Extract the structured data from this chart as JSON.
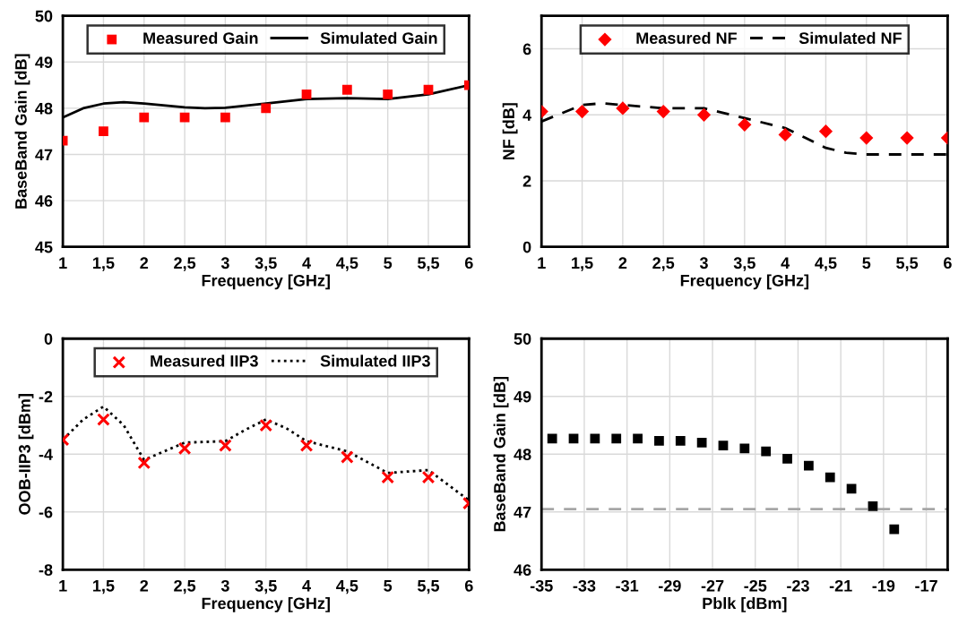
{
  "chart_data": [
    {
      "type": "scatter",
      "xlabel": "Frequency [GHz]",
      "ylabel": "BaseBand Gain [dB]",
      "xlim": [
        1,
        6
      ],
      "ylim": [
        45,
        50
      ],
      "xticks": [
        1,
        {
          "value": 1.5,
          "label": "1,5"
        },
        2,
        {
          "value": 2.5,
          "label": "2,5"
        },
        3,
        {
          "value": 3.5,
          "label": "3,5"
        },
        4,
        {
          "value": 4.5,
          "label": "4,5"
        },
        5,
        {
          "value": 5.5,
          "label": "5,5"
        },
        6
      ],
      "yticks": [
        45,
        46,
        47,
        48,
        49,
        50
      ],
      "grid": true,
      "legend": "top",
      "series": [
        {
          "name": "Measured Gain",
          "marker": "square",
          "color": "#ff0000",
          "x": [
            1,
            1.5,
            2,
            2.5,
            3,
            3.5,
            4,
            4.5,
            5,
            5.5,
            6
          ],
          "values": [
            47.3,
            47.5,
            47.8,
            47.8,
            47.8,
            48.0,
            48.3,
            48.4,
            48.3,
            48.4,
            48.5
          ]
        },
        {
          "name": "Simulated Gain",
          "type": "line",
          "line_style": "solid",
          "color": "#000000",
          "x": [
            1,
            1.25,
            1.5,
            1.75,
            2,
            2.5,
            2.75,
            3,
            3.5,
            4,
            4.5,
            5,
            5.5,
            6
          ],
          "values": [
            47.8,
            48.0,
            48.1,
            48.13,
            48.1,
            48.02,
            48.0,
            48.01,
            48.1,
            48.2,
            48.22,
            48.2,
            48.3,
            48.5
          ]
        }
      ]
    },
    {
      "type": "scatter",
      "xlabel": "Frequency [GHz]",
      "ylabel": "NF [dB]",
      "xlim": [
        1,
        6
      ],
      "ylim": [
        0,
        7
      ],
      "xticks": [
        1,
        {
          "value": 1.5,
          "label": "1,5"
        },
        2,
        {
          "value": 2.5,
          "label": "2,5"
        },
        3,
        {
          "value": 3.5,
          "label": "3,5"
        },
        4,
        {
          "value": 4.5,
          "label": "4,5"
        },
        5,
        {
          "value": 5.5,
          "label": "5,5"
        },
        6
      ],
      "yticks": [
        0,
        2,
        4,
        6
      ],
      "grid": true,
      "legend": "top",
      "series": [
        {
          "name": "Measured NF",
          "marker": "diamond",
          "color": "#ff0000",
          "x": [
            1,
            1.5,
            2,
            2.5,
            3,
            3.5,
            4,
            4.5,
            5,
            5.5,
            6
          ],
          "values": [
            4.1,
            4.1,
            4.2,
            4.1,
            4.0,
            3.7,
            3.4,
            3.5,
            3.3,
            3.3,
            3.3
          ]
        },
        {
          "name": "Simulated NF",
          "type": "line",
          "line_style": "dashed",
          "color": "#000000",
          "x": [
            1,
            1.25,
            1.5,
            1.75,
            2,
            2.5,
            3,
            3.25,
            3.5,
            4,
            4.25,
            4.5,
            4.75,
            5,
            5.5,
            6
          ],
          "values": [
            3.8,
            4.05,
            4.3,
            4.35,
            4.3,
            4.2,
            4.2,
            4.05,
            3.9,
            3.6,
            3.3,
            3.0,
            2.85,
            2.8,
            2.8,
            2.8
          ]
        }
      ]
    },
    {
      "type": "scatter",
      "xlabel": "Frequency [GHz]",
      "ylabel": "OOB-IIP3 [dBm]",
      "xlim": [
        1,
        6
      ],
      "ylim": [
        -8,
        0
      ],
      "xticks": [
        1,
        {
          "value": 1.5,
          "label": "1,5"
        },
        2,
        {
          "value": 2.5,
          "label": "2,5"
        },
        3,
        {
          "value": 3.5,
          "label": "3,5"
        },
        4,
        {
          "value": 4.5,
          "label": "4,5"
        },
        5,
        {
          "value": 5.5,
          "label": "5,5"
        },
        6
      ],
      "yticks": [
        -8,
        -6,
        -4,
        -2,
        0
      ],
      "grid": true,
      "legend": "top",
      "series": [
        {
          "name": "Measured IIP3",
          "marker": "cross",
          "color": "#ff0000",
          "x": [
            1,
            1.5,
            2,
            2.5,
            3,
            3.5,
            4,
            4.5,
            5,
            5.5,
            6
          ],
          "values": [
            -3.5,
            -2.8,
            -4.3,
            -3.8,
            -3.7,
            -3.0,
            -3.7,
            -4.1,
            -4.8,
            -4.8,
            -5.7
          ]
        },
        {
          "name": "Simulated IIP3",
          "type": "line",
          "line_style": "dotted",
          "color": "#000000",
          "x": [
            1,
            1.25,
            1.5,
            1.75,
            2,
            2.25,
            2.5,
            3,
            3.25,
            3.5,
            3.75,
            4,
            4.5,
            5,
            5.5,
            6
          ],
          "values": [
            -3.5,
            -2.8,
            -2.35,
            -3.0,
            -4.2,
            -3.9,
            -3.6,
            -3.55,
            -3.15,
            -2.8,
            -3.1,
            -3.55,
            -3.9,
            -4.65,
            -4.55,
            -5.6
          ]
        }
      ]
    },
    {
      "type": "scatter",
      "xlabel": "Pblk [dBm]",
      "ylabel": "BaseBand Gain [dB]",
      "xlim": [
        -35,
        -16
      ],
      "ylim": [
        46,
        50
      ],
      "xticks": [
        -35,
        -33,
        -31,
        -29,
        -27,
        -25,
        -23,
        -21,
        -19,
        -17
      ],
      "yticks": [
        46,
        47,
        48,
        49,
        50
      ],
      "grid": true,
      "series": [
        {
          "marker": "square",
          "color": "#000000",
          "x": [
            -34.5,
            -33.5,
            -32.5,
            -31.5,
            -30.5,
            -29.5,
            -28.5,
            -27.5,
            -26.5,
            -25.5,
            -24.5,
            -23.5,
            -22.5,
            -21.5,
            -20.5,
            -19.5,
            -18.5
          ],
          "values": [
            48.27,
            48.27,
            48.27,
            48.27,
            48.27,
            48.23,
            48.23,
            48.2,
            48.15,
            48.1,
            48.05,
            47.92,
            47.8,
            47.6,
            47.4,
            47.1,
            46.7
          ]
        }
      ],
      "ref_lines": [
        {
          "axis": "y",
          "value": 47.05,
          "color": "#a6a6a6",
          "line_style": "dashed"
        }
      ]
    }
  ]
}
